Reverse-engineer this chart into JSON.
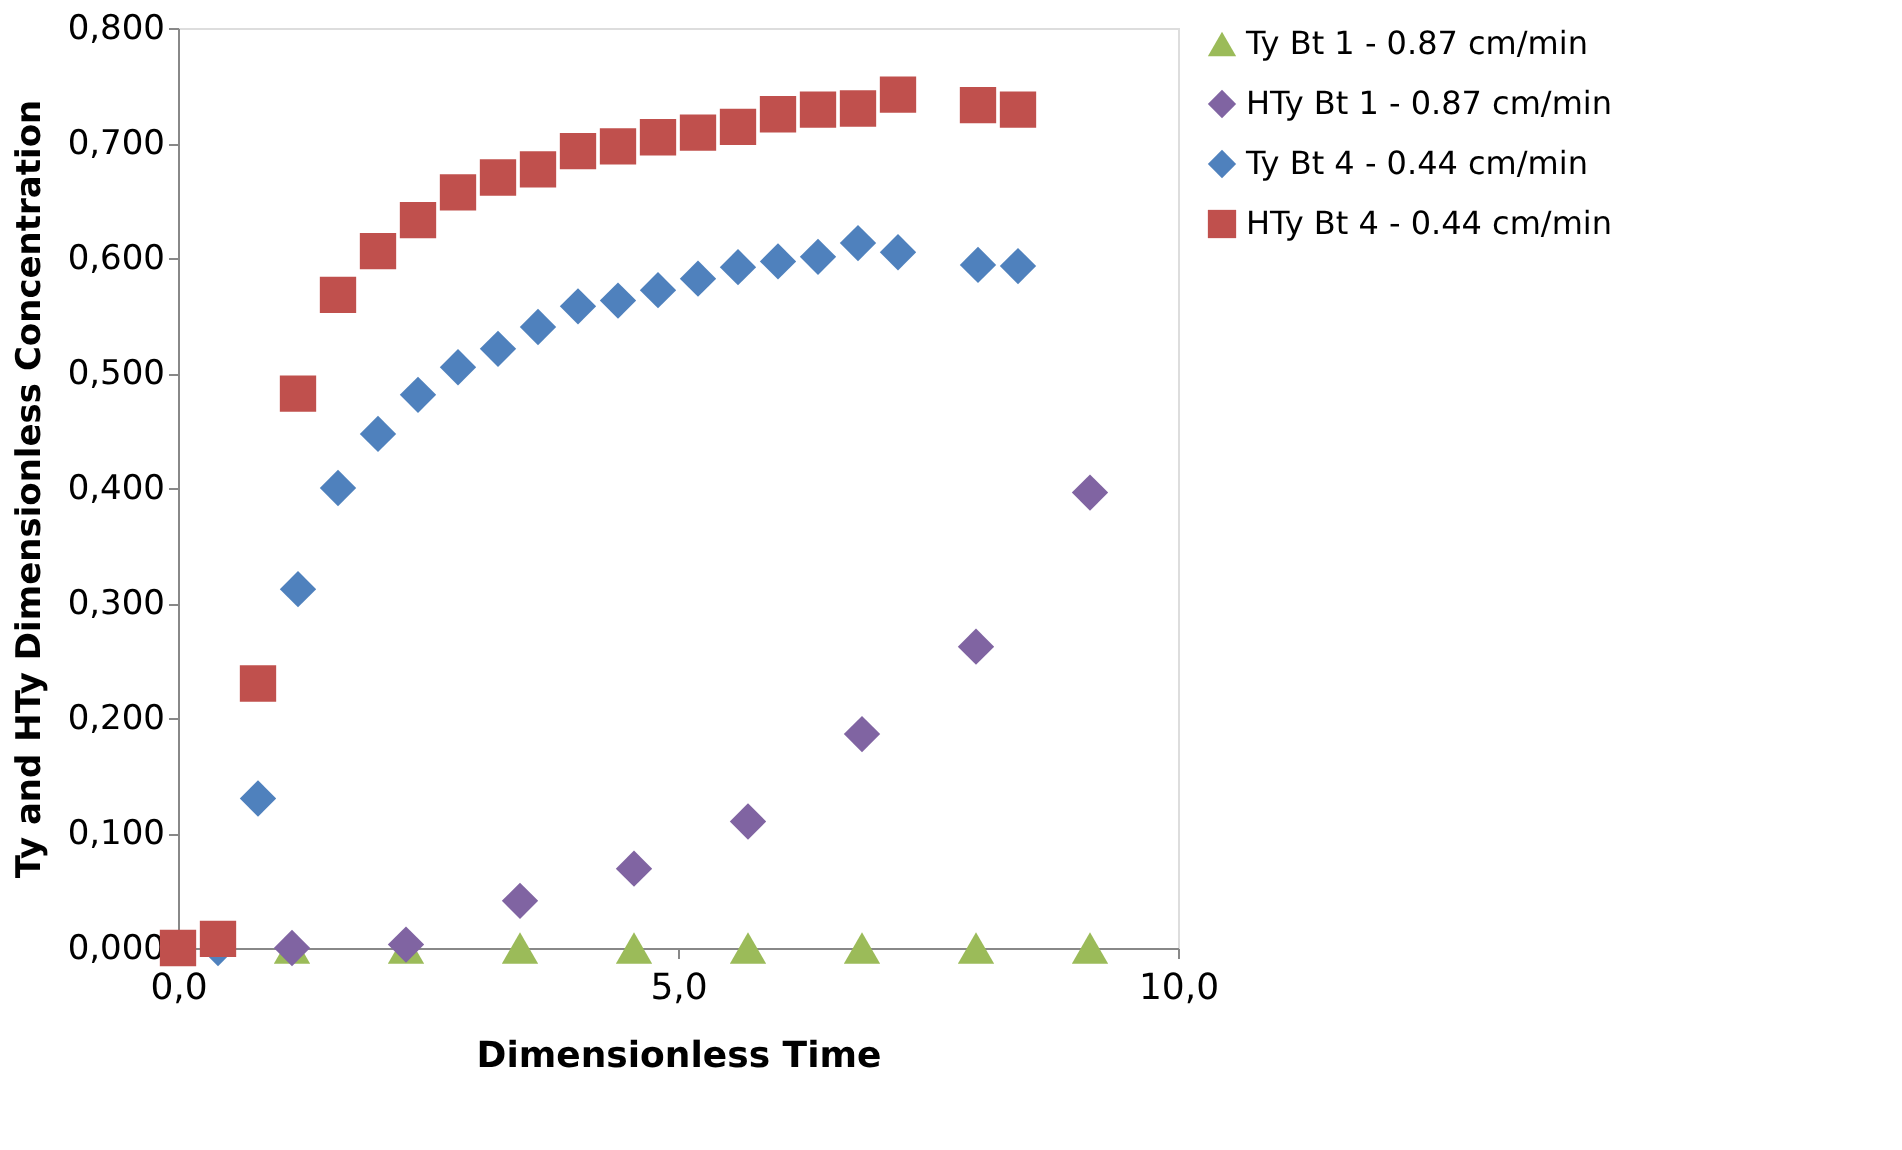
{
  "chart_data": {
    "type": "scatter",
    "xlabel": "Dimensionless Time",
    "ylabel": "Ty and HTy Dimensionless Concentration",
    "xlim": [
      0,
      10
    ],
    "xticks": [
      {
        "value": 0,
        "label": "0,0"
      },
      {
        "value": 5,
        "label": "5,0"
      },
      {
        "value": 10,
        "label": "10,0"
      }
    ],
    "ylim": [
      0,
      0.8
    ],
    "yticks": [
      {
        "value": 0,
        "label": "0,000"
      },
      {
        "value": 0.1,
        "label": "0,100"
      },
      {
        "value": 0.2,
        "label": "0,200"
      },
      {
        "value": 0.3,
        "label": "0,300"
      },
      {
        "value": 0.4,
        "label": "0,400"
      },
      {
        "value": 0.5,
        "label": "0,500"
      },
      {
        "value": 0.6,
        "label": "0,600"
      },
      {
        "value": 0.7,
        "label": "0,700"
      },
      {
        "value": 0.8,
        "label": "0,800"
      }
    ],
    "grid": false,
    "legend": "right",
    "series": [
      {
        "name": "Ty Bt 1 - 0.87 cm/min",
        "color": "#9bbb59",
        "marker": "triangle",
        "x": [
          1.14,
          2.28,
          3.42,
          4.56,
          5.7,
          6.84,
          7.98,
          9.12
        ],
        "values": [
          0,
          0,
          0,
          0,
          0,
          0,
          0,
          0
        ]
      },
      {
        "name": "HTy Bt 1 - 0.87 cm/min",
        "color": "#8064a2",
        "marker": "diamond",
        "x": [
          1.14,
          2.28,
          3.42,
          4.56,
          5.7,
          6.84,
          7.98,
          9.12
        ],
        "values": [
          0,
          0.003,
          0.041,
          0.069,
          0.11,
          0.186,
          0.262,
          0.396
        ]
      },
      {
        "name": "Ty Bt 4 - 0.44 cm/min",
        "color": "#4f81bd",
        "marker": "diamond",
        "x": [
          0.4,
          0.8,
          1.2,
          1.6,
          2.0,
          2.4,
          2.8,
          3.2,
          3.6,
          4.0,
          4.4,
          4.8,
          5.2,
          5.6,
          6.0,
          6.4,
          6.8,
          7.2,
          8.0,
          8.4
        ],
        "values": [
          0,
          0.13,
          0.312,
          0.4,
          0.447,
          0.481,
          0.505,
          0.521,
          0.54,
          0.558,
          0.563,
          0.572,
          0.582,
          0.592,
          0.597,
          0.601,
          0.613,
          0.605,
          0.594,
          0.593
        ]
      },
      {
        "name": "HTy Bt 4 - 0.44 cm/min",
        "color": "#c0504d",
        "marker": "square",
        "x": [
          0,
          0.4,
          0.8,
          1.2,
          1.6,
          2.0,
          2.4,
          2.8,
          3.2,
          3.6,
          4.0,
          4.4,
          4.8,
          5.2,
          5.6,
          6.0,
          6.4,
          6.8,
          7.2,
          8.0,
          8.4
        ],
        "values": [
          0,
          0.008,
          0.23,
          0.482,
          0.568,
          0.606,
          0.633,
          0.657,
          0.67,
          0.677,
          0.693,
          0.697,
          0.705,
          0.709,
          0.714,
          0.725,
          0.729,
          0.73,
          0.742,
          0.733,
          0.729
        ]
      }
    ]
  }
}
